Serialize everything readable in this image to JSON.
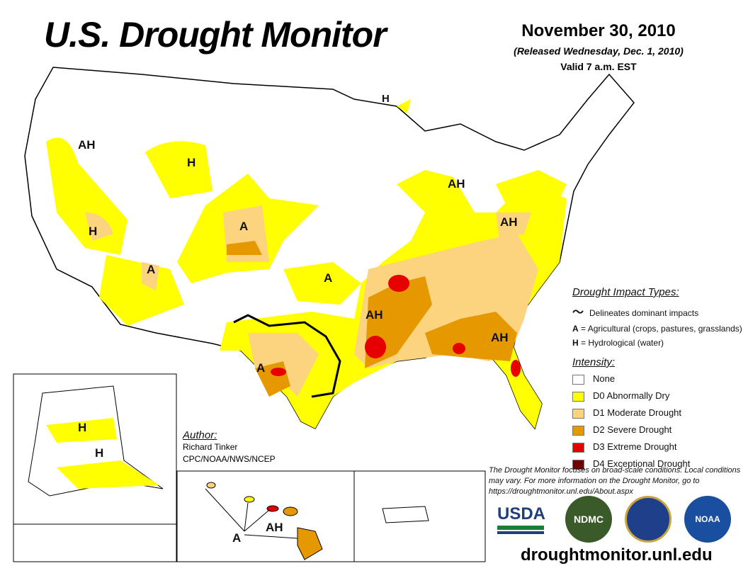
{
  "header": {
    "title": "U.S. Drought Monitor",
    "date": "November 30, 2010",
    "released": "(Released Wednesday, Dec. 1, 2010)",
    "valid": "Valid 7 a.m. EST"
  },
  "map_labels": [
    {
      "id": "ah-oregon",
      "text": "AH"
    },
    {
      "id": "h-montana",
      "text": "H"
    },
    {
      "id": "h-nevada",
      "text": "H"
    },
    {
      "id": "a-colorado",
      "text": "A"
    },
    {
      "id": "a-arizona",
      "text": "A"
    },
    {
      "id": "a-kansas",
      "text": "A"
    },
    {
      "id": "h-minnesota",
      "text": "H"
    },
    {
      "id": "ah-indiana",
      "text": "AH"
    },
    {
      "id": "ah-virginia",
      "text": "AH"
    },
    {
      "id": "ah-arkansas",
      "text": "AH"
    },
    {
      "id": "ah-georgia",
      "text": "AH"
    },
    {
      "id": "a-texas",
      "text": "A"
    },
    {
      "id": "h-alaska-1",
      "text": "H"
    },
    {
      "id": "h-alaska-2",
      "text": "H"
    },
    {
      "id": "ah-hawaii",
      "text": "AH"
    },
    {
      "id": "a-hawaii",
      "text": "A"
    }
  ],
  "impact_legend": {
    "title": "Drought Impact Types:",
    "line": "Delineates dominant impacts",
    "a_key": "A",
    "a_desc": "= Agricultural (crops, pastures, grasslands)",
    "h_key": "H",
    "h_desc": "= Hydrological (water)"
  },
  "intensity_legend": {
    "title": "Intensity:",
    "items": [
      {
        "label": "None",
        "color": "#ffffff"
      },
      {
        "label": "D0 Abnormally Dry",
        "color": "#ffff00"
      },
      {
        "label": "D1 Moderate Drought",
        "color": "#fcd37f"
      },
      {
        "label": "D2 Severe Drought",
        "color": "#e69800"
      },
      {
        "label": "D3 Extreme Drought",
        "color": "#e60000"
      },
      {
        "label": "D4 Exceptional Drought",
        "color": "#730000"
      }
    ]
  },
  "note": "The Drought Monitor focuses on broad-scale conditions. Local conditions may vary. For more information on the Drought Monitor, go to https://droughtmonitor.unl.edu/About.aspx",
  "author": {
    "heading": "Author:",
    "name": "Richard Tinker",
    "org": "CPC/NOAA/NWS/NCEP"
  },
  "logos": {
    "usda": "USDA",
    "ndmc": "NDMC",
    "noaa": "NOAA"
  },
  "url": "droughtmonitor.unl.edu"
}
